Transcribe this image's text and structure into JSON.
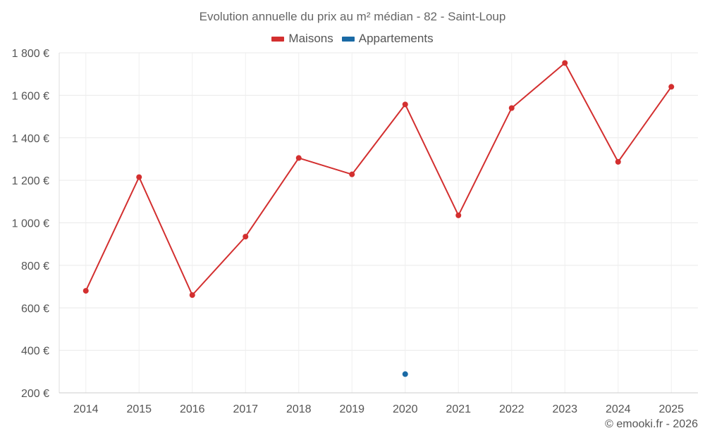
{
  "chart_data": {
    "type": "line",
    "title": "Evolution annuelle du prix au m² médian - 82 - Saint-Loup",
    "xlabel": "",
    "ylabel": "",
    "categories": [
      "2014",
      "2015",
      "2016",
      "2017",
      "2018",
      "2019",
      "2020",
      "2021",
      "2022",
      "2023",
      "2024",
      "2025"
    ],
    "ylim": [
      200,
      1800
    ],
    "y_ticks": [
      200,
      400,
      600,
      800,
      1000,
      1200,
      1400,
      1600,
      1800
    ],
    "y_tick_labels": [
      "200 €",
      "400 €",
      "600 €",
      "800 €",
      "1 000 €",
      "1 200 €",
      "1 400 €",
      "1 600 €",
      "1 800 €"
    ],
    "grid": true,
    "legend_position": "top-center",
    "series": [
      {
        "name": "Maisons",
        "color": "#d32f2f",
        "values": [
          680,
          1215,
          660,
          935,
          1305,
          1228,
          1557,
          1035,
          1540,
          1752,
          1287,
          1640
        ]
      },
      {
        "name": "Appartements",
        "color": "#1a6aa5",
        "values": [
          null,
          null,
          null,
          null,
          null,
          null,
          288,
          null,
          null,
          null,
          null,
          null
        ]
      }
    ]
  },
  "credit": "© emooki.fr - 2026"
}
